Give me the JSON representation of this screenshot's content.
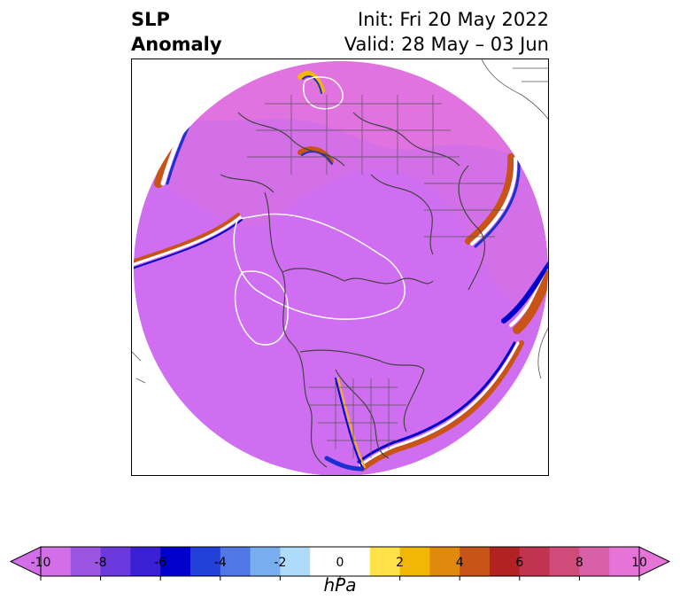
{
  "title": {
    "left_line1": "SLP",
    "left_line2": "Anomaly",
    "right_line1": "Init: Fri 20 May 2022",
    "right_line2": "Valid: 28 May – 03 Jun"
  },
  "map": {
    "projection": "north polar stereographic",
    "fill_color": "#d56fe6",
    "coast_color": "#444444"
  },
  "colorbar": {
    "unit_label": "hPa",
    "ticks": [
      "-10",
      "-8",
      "-6",
      "-4",
      "-2",
      "0",
      "2",
      "4",
      "6",
      "8",
      "10"
    ],
    "colors": [
      "#d26ee8",
      "#9b55e0",
      "#6b38dd",
      "#3a1fd4",
      "#0000cc",
      "#2240d8",
      "#4f78e6",
      "#78aef0",
      "#aedbfa",
      "#ffffff",
      "#ffffff",
      "#ffe24a",
      "#f2b705",
      "#e08a0d",
      "#c85417",
      "#b22222",
      "#c23351",
      "#d04a7a",
      "#d960a8",
      "#e673d8"
    ],
    "extend": "both"
  }
}
